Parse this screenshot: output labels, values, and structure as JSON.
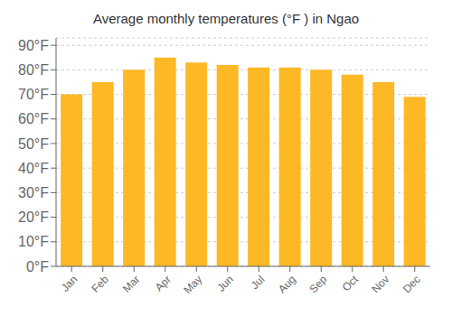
{
  "chart_data": {
    "type": "bar",
    "title": "Average monthly temperatures (°F ) in Ngao",
    "categories": [
      "Jan",
      "Feb",
      "Mar",
      "Apr",
      "May",
      "Jun",
      "Jul",
      "Aug",
      "Sep",
      "Oct",
      "Nov",
      "Dec"
    ],
    "values": [
      70,
      75,
      80,
      85,
      83,
      82,
      81,
      81,
      80,
      78,
      75,
      69
    ],
    "color": "#FDB825",
    "ylim": [
      0,
      93
    ],
    "yticks": [
      {
        "value": 0,
        "label": "0°F"
      },
      {
        "value": 10,
        "label": "10°F"
      },
      {
        "value": 20,
        "label": "20°F"
      },
      {
        "value": 30,
        "label": "30°F"
      },
      {
        "value": 40,
        "label": "40°F"
      },
      {
        "value": 50,
        "label": "50°F"
      },
      {
        "value": 60,
        "label": "60°F"
      },
      {
        "value": 70,
        "label": "70°F"
      },
      {
        "value": 80,
        "label": "80°F"
      },
      {
        "value": 90,
        "label": "90°F"
      }
    ],
    "grid": true
  }
}
